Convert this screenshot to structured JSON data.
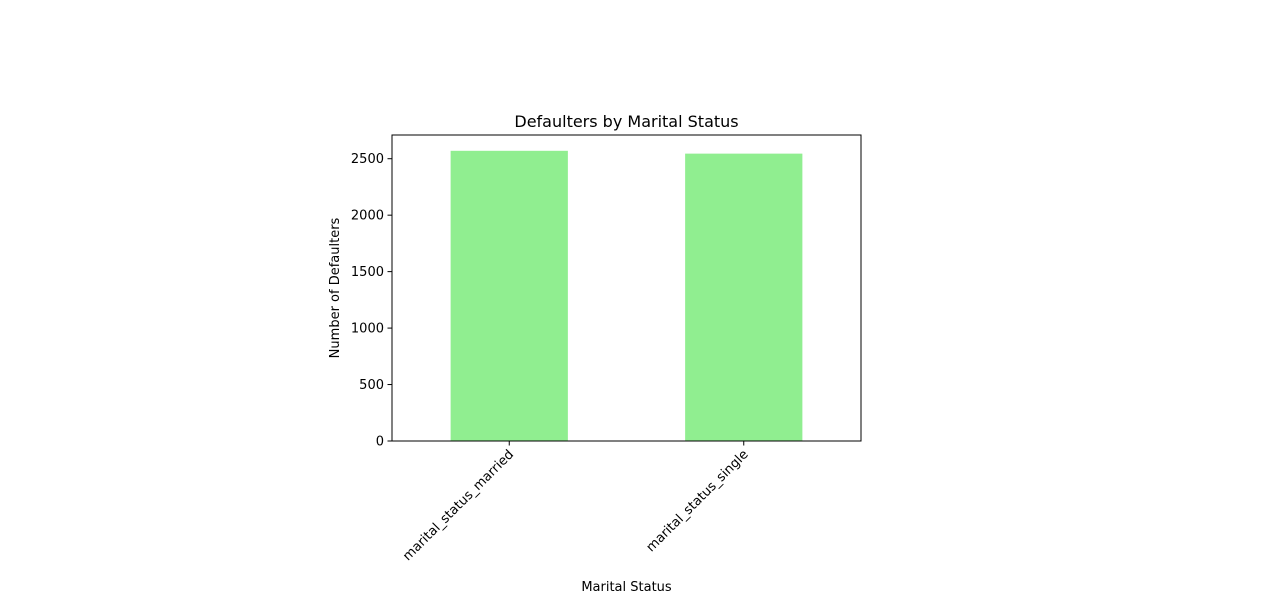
{
  "chart_data": {
    "type": "bar",
    "title": "Defaulters by Marital Status",
    "xlabel": "Marital Status",
    "ylabel": "Number of Defaulters",
    "categories": [
      "marital_status_married",
      "marital_status_single"
    ],
    "values": [
      2570,
      2545
    ],
    "ylim": [
      0,
      2710
    ],
    "yticks": [
      0,
      500,
      1000,
      1500,
      2000,
      2500
    ],
    "bar_color": "#90ee90",
    "grid": false,
    "legend": "none",
    "xtick_rotation_deg": 45
  }
}
